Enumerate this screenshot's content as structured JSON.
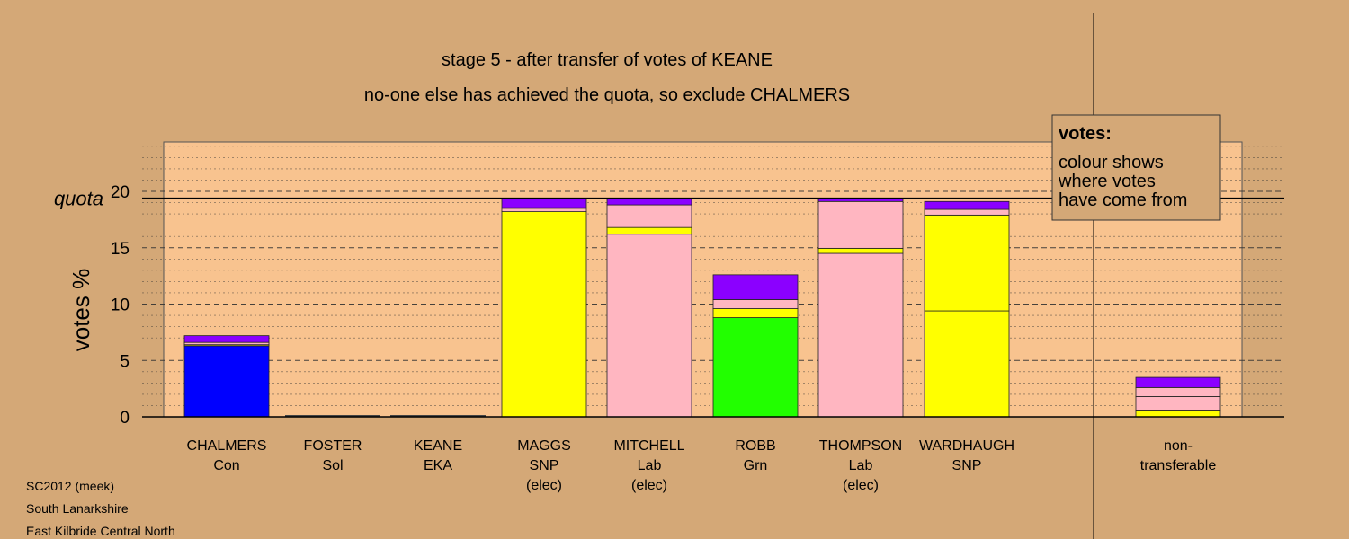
{
  "title": {
    "line1": "stage 5 - after transfer of votes of KEANE",
    "line2": "no-one else has achieved the quota, so exclude CHALMERS"
  },
  "legend": {
    "heading": "votes:",
    "lines": [
      "colour shows",
      "where votes",
      "have come from"
    ]
  },
  "footer": {
    "lines": [
      "SC2012 (meek)",
      "South Lanarkshire",
      "East Kilbride Central North"
    ]
  },
  "colors": {
    "background": "#d4a877",
    "plot_area": "#f8c38f",
    "Con": "#0000ff",
    "SNP": "#ffff00",
    "Lab": "#ffb6c1",
    "Grn": "#22ff00",
    "Sol": "#cc0000",
    "EKA": "#a0522d",
    "other": "#8b00ff"
  },
  "chart_data": {
    "type": "bar",
    "stacked": true,
    "ylabel": "votes %",
    "ylim": [
      0,
      24.5
    ],
    "yticks": [
      0,
      5,
      10,
      15,
      20
    ],
    "quota": 19.4,
    "quota_label": "quota",
    "grid": "dashed horizontal",
    "legend_position": "top-right",
    "candidates": [
      {
        "name": "CHALMERS",
        "party": "Con",
        "status": "",
        "total": 7.2,
        "segments": [
          {
            "from": "Con",
            "value": 6.3
          },
          {
            "from": "SNP",
            "value": 0.1
          },
          {
            "from": "Lab",
            "value": 0.2
          },
          {
            "from": "other",
            "value": 0.6
          }
        ]
      },
      {
        "name": "FOSTER",
        "party": "Sol",
        "status": "",
        "total": 0,
        "segments": []
      },
      {
        "name": "KEANE",
        "party": "EKA",
        "status": "",
        "total": 0,
        "segments": []
      },
      {
        "name": "MAGGS",
        "party": "SNP",
        "status": "(elec)",
        "total": 19.4,
        "segments": [
          {
            "from": "SNP",
            "value": 18.2
          },
          {
            "from": "Lab",
            "value": 0.3
          },
          {
            "from": "Grn",
            "value": 0.05
          },
          {
            "from": "other",
            "value": 0.85
          }
        ]
      },
      {
        "name": "MITCHELL",
        "party": "Lab",
        "status": "(elec)",
        "total": 19.4,
        "segments": [
          {
            "from": "Lab",
            "value": 16.2
          },
          {
            "from": "SNP",
            "value": 0.6
          },
          {
            "from": "Lab",
            "value": 2.0
          },
          {
            "from": "other",
            "value": 0.6
          }
        ]
      },
      {
        "name": "ROBB",
        "party": "Grn",
        "status": "",
        "total": 12.6,
        "segments": [
          {
            "from": "Grn",
            "value": 8.8
          },
          {
            "from": "SNP",
            "value": 0.8
          },
          {
            "from": "Lab",
            "value": 0.8
          },
          {
            "from": "other",
            "value": 2.2
          }
        ]
      },
      {
        "name": "THOMPSON",
        "party": "Lab",
        "status": "(elec)",
        "total": 19.4,
        "segments": [
          {
            "from": "Lab",
            "value": 14.5
          },
          {
            "from": "SNP",
            "value": 0.45
          },
          {
            "from": "Lab",
            "value": 4.15
          },
          {
            "from": "other",
            "value": 0.3
          }
        ]
      },
      {
        "name": "WARDHAUGH",
        "party": "SNP",
        "status": "",
        "total": 19.1,
        "segments": [
          {
            "from": "SNP",
            "value": 9.4
          },
          {
            "from": "SNP",
            "value": 8.5
          },
          {
            "from": "Lab",
            "value": 0.5
          },
          {
            "from": "other",
            "value": 0.7
          }
        ]
      },
      {
        "name": "",
        "party": "",
        "status": "",
        "total": 0,
        "segments": []
      },
      {
        "name": "non-",
        "party": "transferable",
        "status": "",
        "total": 3.5,
        "segments": [
          {
            "from": "SNP",
            "value": 0.6
          },
          {
            "from": "Lab",
            "value": 1.2
          },
          {
            "from": "Lab",
            "value": 0.8
          },
          {
            "from": "other",
            "value": 0.9
          }
        ]
      }
    ]
  }
}
